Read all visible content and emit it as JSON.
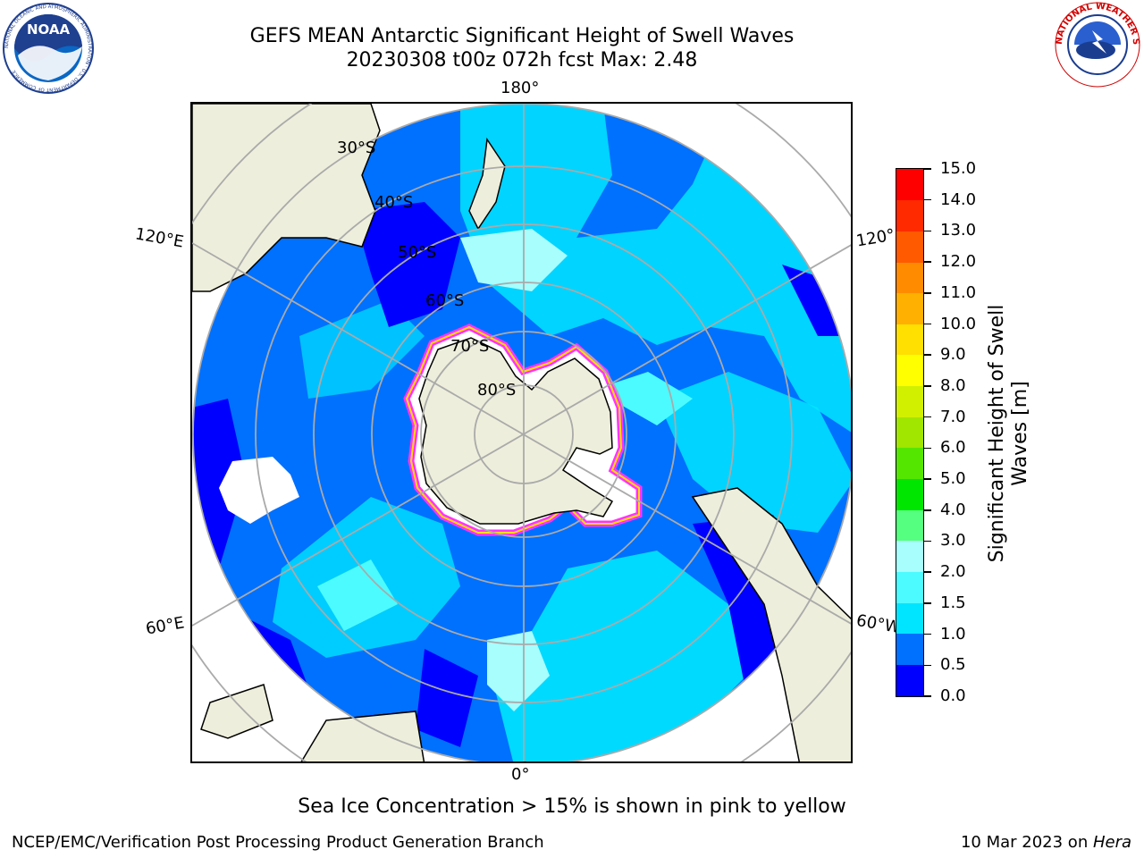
{
  "title_line1": "GEFS MEAN Antarctic Significant Height of Swell Waves",
  "title_line2": "20230308 t00z 072h fcst   Max: 2.48",
  "logos": {
    "left": "noaa-logo",
    "right": "nws-logo"
  },
  "noaa_logo_text": "NOAA",
  "noaa_ring_text": "NATIONAL OCEANIC AND ATMOSPHERIC ADMINISTRATION · U.S. DEPARTMENT OF COMMERCE",
  "nws_ring_text": "NATIONAL WEATHER SERVICE",
  "lon_labels": {
    "top": "180°",
    "bottom": "0°",
    "upper_left": "120°E",
    "upper_right": "120°",
    "lower_left": "60°E",
    "lower_right": "60°W"
  },
  "lat_labels": [
    "30°S",
    "40°S",
    "50°S",
    "60°S",
    "70°S",
    "80°S"
  ],
  "colorbar": {
    "label": "Significant Height of Swell Waves [m]",
    "ticks": [
      "0.0",
      "0.5",
      "1.0",
      "1.5",
      "2.0",
      "3.0",
      "4.0",
      "5.0",
      "6.0",
      "7.0",
      "8.0",
      "9.0",
      "10.0",
      "11.0",
      "12.0",
      "13.0",
      "14.0",
      "15.0"
    ],
    "colors": [
      "#0000ff",
      "#0070ff",
      "#00e5ff",
      "#4cfbff",
      "#a8fdfd",
      "#55ff80",
      "#00e600",
      "#55e600",
      "#a0e600",
      "#d0f000",
      "#ffff00",
      "#ffe000",
      "#ffb000",
      "#ff8c00",
      "#ff5a00",
      "#ff2a00",
      "#ff0000"
    ]
  },
  "colors": {
    "land": "#eeeedc",
    "ocean_mid": "#0070ff",
    "ice_edge": "#ff33ff",
    "grid": "#aaaaaa"
  },
  "footnote": "Sea Ice Concentration > 15% is shown in pink to yellow",
  "credit_left": "NCEP/EMC/Verification Post Processing Product Generation Branch",
  "credit_right_prefix": "10 Mar 2023 on ",
  "credit_right_italic": "Hera"
}
